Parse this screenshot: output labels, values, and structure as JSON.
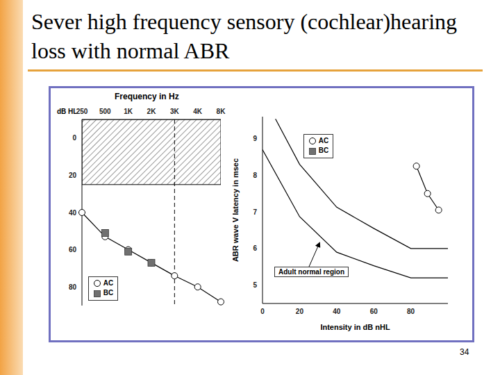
{
  "title": "Sever high frequency sensory (cochlear)hearing loss with normal ABR",
  "page": 34,
  "chart_data": [
    {
      "type": "line",
      "x_label": "Frequency in Hz",
      "y_label": "dB HL",
      "categories": [
        "250",
        "500",
        "1K",
        "2K",
        "3K",
        "4K",
        "8K"
      ],
      "series": [
        {
          "name": "AC",
          "color": "#000000",
          "marker": "circle",
          "line_style": "solid",
          "values": [
            40,
            53,
            60,
            67,
            74,
            80,
            88
          ]
        },
        {
          "name": "BC",
          "color": "#707070",
          "marker": "square",
          "line_style": "none",
          "values": [
            null,
            51,
            61,
            67,
            null,
            null,
            null
          ]
        }
      ],
      "ylim": [
        90,
        -10
      ],
      "yticks": [
        0,
        20,
        40,
        60,
        80
      ],
      "shaded_region": [
        -10,
        25
      ],
      "reference_line_x": "3K",
      "legend": "lower left",
      "grid": false
    },
    {
      "type": "line",
      "x_label": "Intensity in dB nHL",
      "y_label": "ABR wave V latency in msec",
      "xlim": [
        0,
        100
      ],
      "xticks": [
        0,
        20,
        40,
        60,
        80
      ],
      "ylim": [
        4.5,
        9.6
      ],
      "yticks": [
        5,
        6,
        7,
        8,
        9
      ],
      "series": [
        {
          "name": "AC",
          "color": "#000000",
          "marker": "circle",
          "line_style": "solid",
          "x": [
            83,
            89,
            95
          ],
          "values": [
            8.25,
            7.5,
            7.05
          ]
        },
        {
          "name": "BC",
          "color": "#707070",
          "marker": "square",
          "line_style": "none",
          "x": [],
          "values": []
        }
      ],
      "normal_region": {
        "label": "Adult normal region",
        "upper": {
          "x": [
            7,
            20,
            40,
            60,
            80,
            100
          ],
          "values": [
            9.54,
            8.3,
            7.13,
            6.55,
            6.0,
            6.0
          ]
        },
        "lower": {
          "x": [
            0,
            20,
            40,
            60,
            80,
            100
          ],
          "values": [
            8.7,
            6.87,
            5.9,
            5.53,
            5.2,
            5.2
          ]
        }
      },
      "legend": "upper left",
      "grid": false
    }
  ]
}
